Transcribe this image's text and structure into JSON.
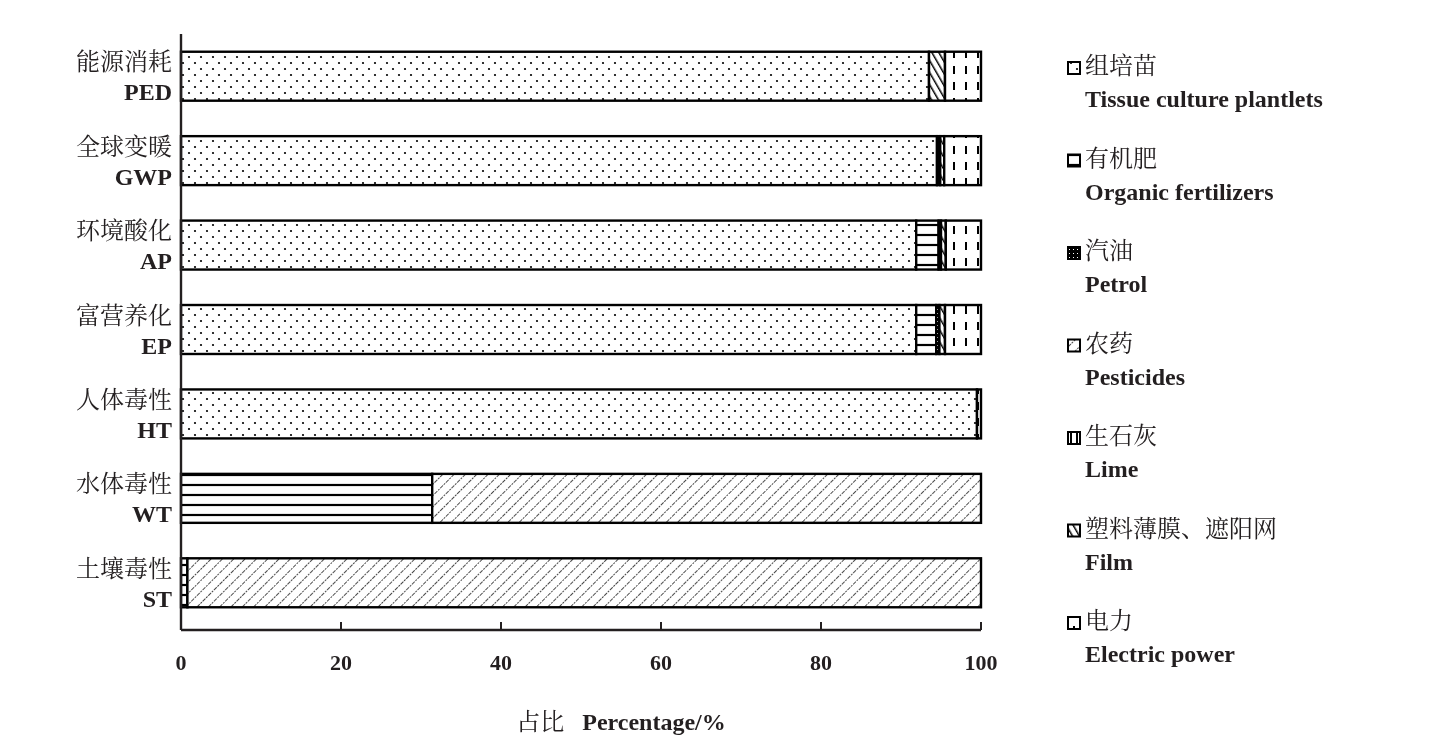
{
  "chart_data": {
    "type": "bar",
    "orientation": "horizontal",
    "stacked": true,
    "xlabel": "占比　Percentage/%",
    "categories": [
      "能源消耗\nPED",
      "全球变暖\nGWP",
      "环境酸化\nAP",
      "富营养化\nEP",
      "人体毒性\nHT",
      "水体毒性\nWT",
      "土壤毒性\nST"
    ],
    "series": [
      {
        "name": "组培苗\nTissue culture plantlets",
        "color": "#000000",
        "values": [
          93.5,
          94.5,
          91.9,
          91.9,
          99.5,
          null,
          null
        ]
      },
      {
        "name": "有机肥\nOrganic fertilizers",
        "color": "#000000",
        "values": [
          null,
          null,
          2.8,
          2.5,
          null,
          31.4,
          0.8
        ]
      },
      {
        "name": "汽油\nPetrol",
        "color": "#000000",
        "values": [
          null,
          0.4,
          0.3,
          0.4,
          null,
          null,
          null
        ]
      },
      {
        "name": "农药\nPesticides",
        "color": "#000000",
        "values": [
          null,
          null,
          null,
          null,
          null,
          68.6,
          99.2
        ]
      },
      {
        "name": "生石灰\nLime",
        "color": "#000000",
        "values": [
          null,
          null,
          null,
          null,
          null,
          null,
          null
        ]
      },
      {
        "name": "塑料薄膜、遮阳网\nFilm",
        "color": "#000000",
        "values": [
          2.0,
          0.5,
          0.6,
          0.7,
          null,
          null,
          null
        ]
      },
      {
        "name": "电力\nElectric power",
        "color": "#000000",
        "values": [
          4.5,
          4.6,
          4.4,
          4.5,
          0.5,
          null,
          null
        ]
      }
    ],
    "xlim": [
      0,
      100
    ],
    "xticks": [
      0,
      20,
      40,
      60,
      80,
      100
    ],
    "grid": false,
    "legend": "right"
  }
}
